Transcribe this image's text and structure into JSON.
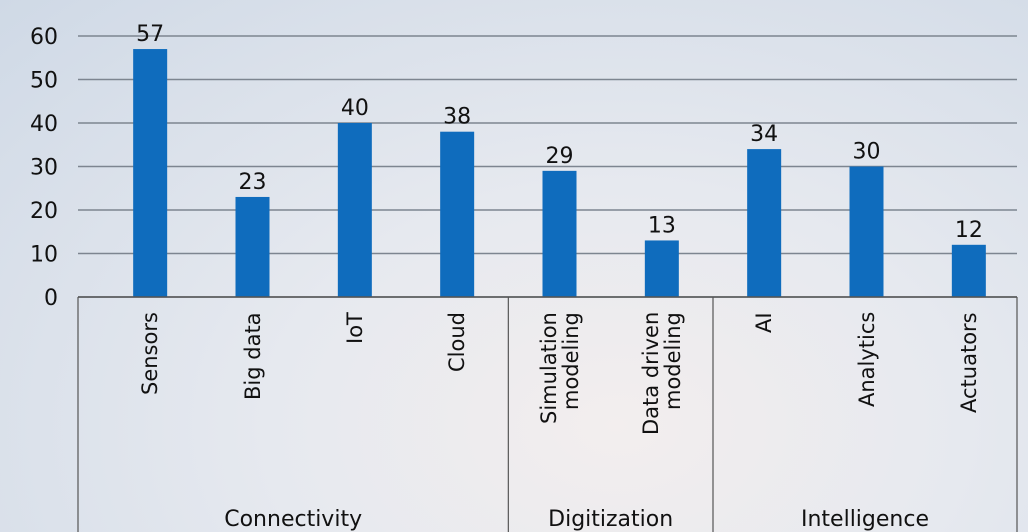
{
  "chart_data": {
    "type": "bar",
    "groups": [
      {
        "name": "Connectivity",
        "categories": [
          "Sensors",
          "Big data",
          "IoT",
          "Cloud"
        ]
      },
      {
        "name": "Digitization",
        "categories": [
          "Simulation\nmodeling",
          "Data driven\nmodeling"
        ]
      },
      {
        "name": "Intelligence",
        "categories": [
          "AI",
          "Analytics",
          "Actuators"
        ]
      }
    ],
    "values": [
      57,
      23,
      40,
      38,
      29,
      13,
      34,
      30,
      12
    ],
    "color": "#0f6cbd",
    "ylim": [
      0,
      60
    ],
    "yticks": [
      0,
      10,
      20,
      30,
      40,
      50,
      60
    ],
    "grid": true
  }
}
